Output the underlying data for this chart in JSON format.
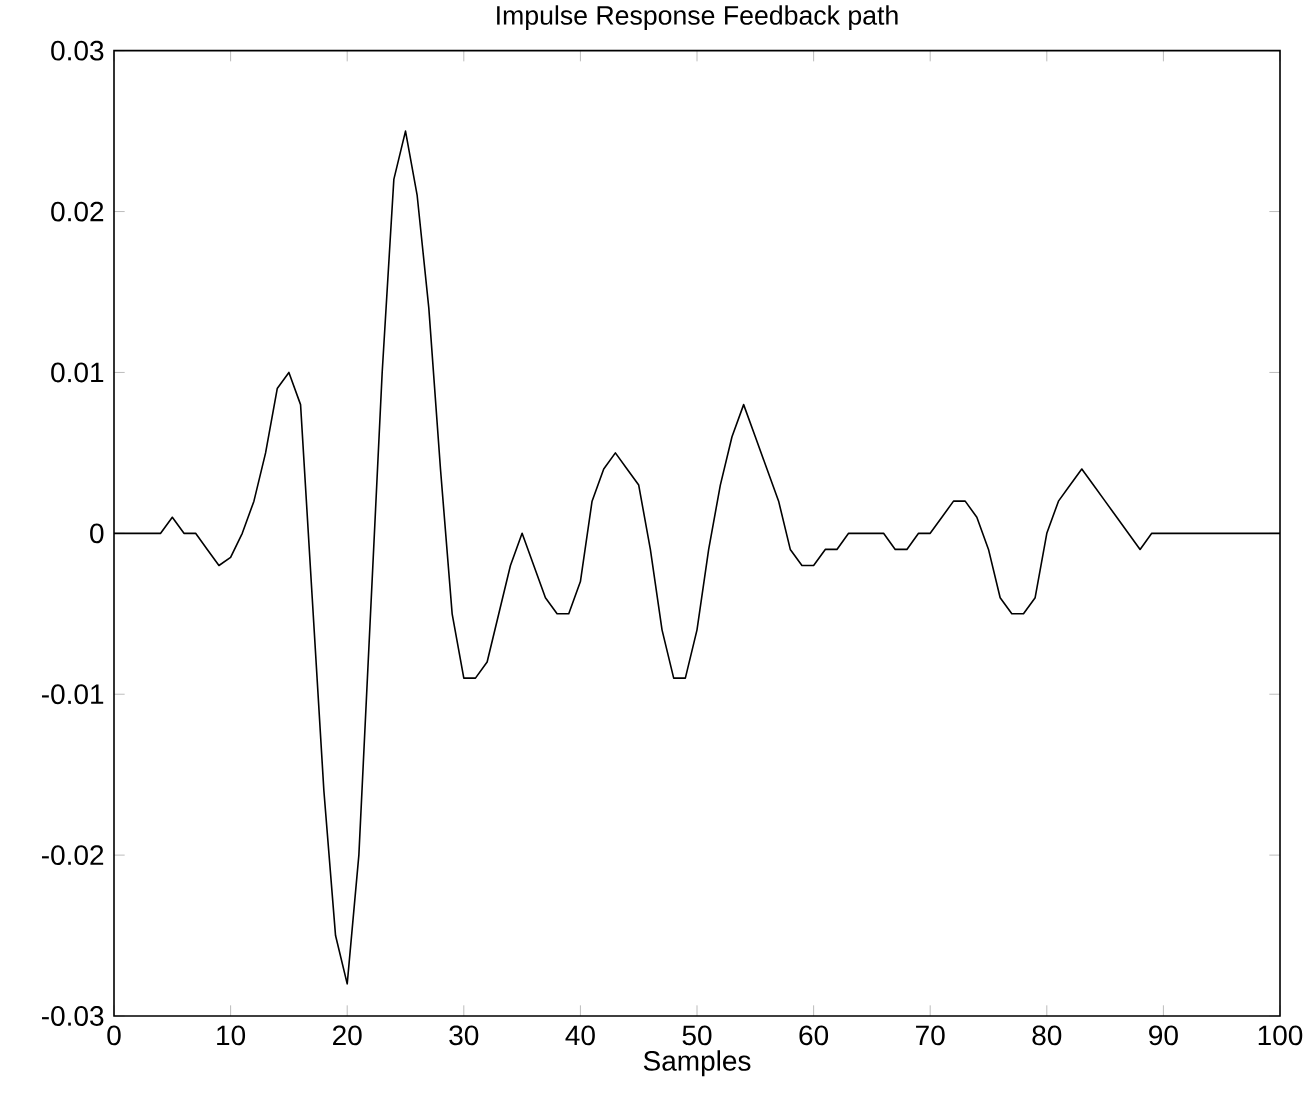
{
  "chart_data": {
    "type": "line",
    "title": "Impulse Response Feedback path",
    "xlabel": "Samples",
    "x": [
      0,
      1,
      2,
      3,
      4,
      5,
      6,
      7,
      8,
      9,
      10,
      11,
      12,
      13,
      14,
      15,
      16,
      17,
      18,
      19,
      20,
      21,
      22,
      23,
      24,
      25,
      26,
      27,
      28,
      29,
      30,
      31,
      32,
      33,
      34,
      35,
      36,
      37,
      38,
      39,
      40,
      41,
      42,
      43,
      44,
      45,
      46,
      47,
      48,
      49,
      50,
      51,
      52,
      53,
      54,
      55,
      56,
      57,
      58,
      59,
      60,
      61,
      62,
      63,
      64,
      65,
      66,
      67,
      68,
      69,
      70,
      71,
      72,
      73,
      74,
      75,
      76,
      77,
      78,
      79,
      80,
      81,
      82,
      83,
      84,
      85,
      86,
      87,
      88,
      89,
      90,
      91,
      92,
      93,
      94,
      95,
      96,
      97,
      98,
      99,
      100
    ],
    "series": [
      {
        "color": "#000000",
        "values": [
          0,
          0,
          0,
          0,
          0,
          0.001,
          0,
          0,
          -0.001,
          -0.002,
          -0.0015,
          0,
          0.002,
          0.005,
          0.009,
          0.01,
          0.008,
          -0.004,
          -0.016,
          -0.025,
          -0.028,
          -0.02,
          -0.005,
          0.01,
          0.022,
          0.025,
          0.021,
          0.014,
          0.004,
          -0.005,
          -0.009,
          -0.009,
          -0.008,
          -0.005,
          -0.002,
          0,
          -0.002,
          -0.004,
          -0.005,
          -0.005,
          -0.003,
          0.002,
          0.004,
          0.005,
          0.004,
          0.003,
          -0.001,
          -0.006,
          -0.009,
          -0.009,
          -0.006,
          -0.001,
          0.003,
          0.006,
          0.008,
          0.006,
          0.004,
          0.002,
          -0.001,
          -0.002,
          -0.002,
          -0.001,
          -0.001,
          0,
          0,
          0,
          0,
          -0.001,
          -0.001,
          0,
          0,
          0.001,
          0.002,
          0.002,
          0.001,
          -0.001,
          -0.004,
          -0.005,
          -0.005,
          -0.004,
          0,
          0.002,
          0.003,
          0.004,
          0.003,
          0.002,
          0.001,
          0,
          -0.001,
          0,
          0,
          0,
          0,
          0,
          0,
          0,
          0,
          0,
          0,
          0,
          0
        ]
      }
    ],
    "xlim": [
      0,
      100
    ],
    "ylim": [
      -0.03,
      0.03
    ],
    "xticks": [
      0,
      10,
      20,
      30,
      40,
      50,
      60,
      70,
      80,
      90,
      100
    ],
    "yticks": [
      -0.03,
      -0.02,
      -0.01,
      0,
      0.01,
      0.02,
      0.03
    ],
    "grid": false,
    "marker": "none",
    "line_style": "solid"
  }
}
